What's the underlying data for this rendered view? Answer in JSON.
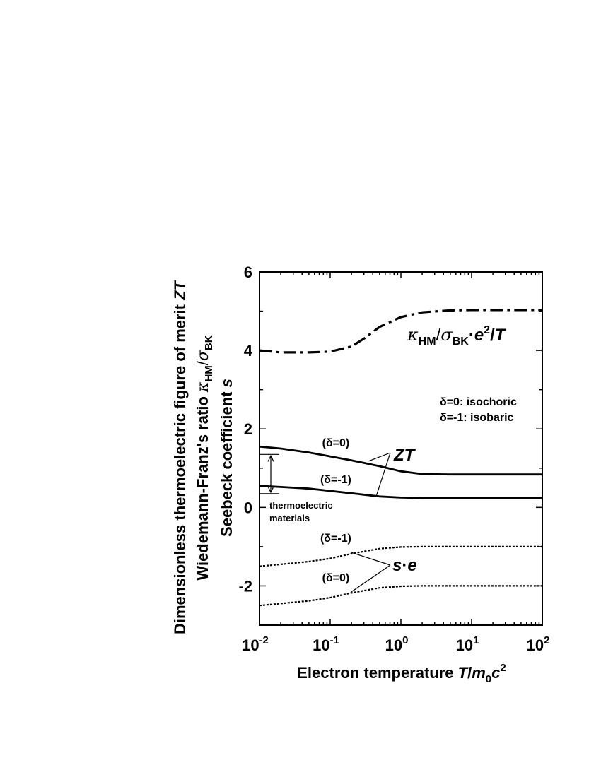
{
  "chart_data": {
    "type": "line",
    "x_scale": "log",
    "xlim": [
      0.01,
      100
    ],
    "ylim": [
      -3,
      6
    ],
    "x_ticks": [
      {
        "value": 0.01,
        "base": "10",
        "exp": "-2"
      },
      {
        "value": 0.1,
        "base": "10",
        "exp": "-1"
      },
      {
        "value": 1,
        "base": "10",
        "exp": "0"
      },
      {
        "value": 10,
        "base": "10",
        "exp": "1"
      },
      {
        "value": 100,
        "base": "10",
        "exp": "2"
      }
    ],
    "y_ticks": [
      "-2",
      "0",
      "2",
      "4",
      "6"
    ],
    "y_tick_values": [
      -2,
      0,
      2,
      4,
      6
    ],
    "xlabel": {
      "main": "Electron temperature ",
      "T": "T",
      "slash": "/",
      "m": "m",
      "sub0": "0",
      "c": "c",
      "sup2": "2"
    },
    "ylabel_lines": {
      "line1": {
        "text": "Dimensionless thermoelectric figure of merit  ",
        "italic": "ZT"
      },
      "line2": {
        "text": "Wiedemann-Franz's ratio  ",
        "kappa": "κ",
        "hm": "HM",
        "slash": "/",
        "sigma": "σ",
        "bk": "BK"
      },
      "line3": {
        "text": "Seebeck coefficient  ",
        "italic": "s"
      }
    },
    "series": [
      {
        "name": "κHM/σBK·e²/T",
        "style": "dashdot",
        "x": [
          0.01,
          0.02,
          0.05,
          0.1,
          0.2,
          0.3,
          0.5,
          1,
          2,
          5,
          10,
          100
        ],
        "y": [
          4.0,
          3.95,
          3.95,
          3.97,
          4.1,
          4.3,
          4.6,
          4.85,
          4.97,
          5.02,
          5.03,
          5.03
        ]
      },
      {
        "name": "ZT (δ=0)",
        "style": "solid",
        "x": [
          0.01,
          0.02,
          0.05,
          0.1,
          0.2,
          0.5,
          1,
          2,
          5,
          10,
          100
        ],
        "y": [
          1.55,
          1.5,
          1.4,
          1.3,
          1.2,
          1.05,
          0.92,
          0.85,
          0.84,
          0.84,
          0.84
        ],
        "label": "(δ=0)"
      },
      {
        "name": "ZT (δ=-1)",
        "style": "solid",
        "x": [
          0.01,
          0.02,
          0.05,
          0.1,
          0.2,
          0.5,
          1,
          2,
          5,
          10,
          100
        ],
        "y": [
          0.55,
          0.52,
          0.48,
          0.42,
          0.36,
          0.28,
          0.25,
          0.24,
          0.24,
          0.24,
          0.24
        ],
        "label": "(δ=-1)"
      },
      {
        "name": "s·e (δ=-1)",
        "style": "dotted",
        "x": [
          0.01,
          0.02,
          0.05,
          0.1,
          0.2,
          0.5,
          1,
          2,
          5,
          10,
          100
        ],
        "y": [
          -1.5,
          -1.45,
          -1.38,
          -1.3,
          -1.18,
          -1.05,
          -1.01,
          -1.0,
          -1.0,
          -1.0,
          -1.0
        ],
        "label": "(δ=-1)"
      },
      {
        "name": "s·e (δ=0)",
        "style": "dotted",
        "x": [
          0.01,
          0.02,
          0.05,
          0.1,
          0.2,
          0.5,
          1,
          2,
          5,
          10,
          100
        ],
        "y": [
          -2.5,
          -2.45,
          -2.38,
          -2.3,
          -2.18,
          -2.05,
          -2.01,
          -2.0,
          -2.0,
          -2.0,
          -2.0
        ],
        "label": "(δ=0)"
      }
    ],
    "annotations": {
      "kappa_label": {
        "kappa": "κ",
        "hm": "HM",
        "slash": "/",
        "sigma": "σ",
        "bk": "BK",
        "dot": "·",
        "e": "e",
        "sup2": "2",
        "slash2": "/",
        "T": "T"
      },
      "zt_label": "ZT",
      "se_label": {
        "s": "s",
        "dot": "·",
        "e": "e"
      },
      "delta_legend_1": "δ=0: isochoric",
      "delta_legend_2": "δ=-1: isobaric",
      "thermo_label_1": "thermoelectric",
      "thermo_label_2": "materials",
      "thermo_range": [
        1.35,
        0.35
      ]
    }
  }
}
